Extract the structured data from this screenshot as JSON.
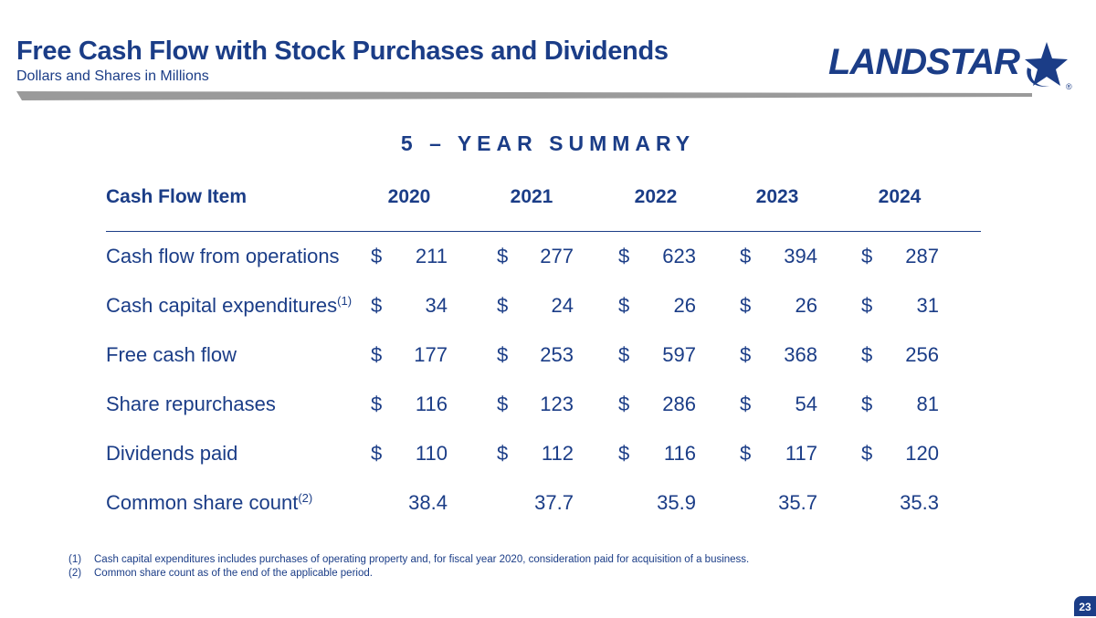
{
  "header": {
    "title": "Free Cash Flow with Stock Purchases and Dividends",
    "subtitle": "Dollars and Shares in Millions"
  },
  "logo": {
    "text": "LANDSTAR",
    "registered": "®",
    "icon": "star-icon",
    "color": "#1b3d87"
  },
  "summary_title": "5 – YEAR SUMMARY",
  "table": {
    "label_header": "Cash Flow Item",
    "years": [
      "2020",
      "2021",
      "2022",
      "2023",
      "2024"
    ],
    "rows": [
      {
        "label": "Cash flow from operations",
        "sup": "",
        "currency": "$",
        "values": [
          "211",
          "277",
          "623",
          "394",
          "287"
        ]
      },
      {
        "label": "Cash capital expenditures",
        "sup": "(1)",
        "currency": "$",
        "values": [
          "34",
          "24",
          "26",
          "26",
          "31"
        ]
      },
      {
        "label": "Free cash flow",
        "sup": "",
        "currency": "$",
        "values": [
          "177",
          "253",
          "597",
          "368",
          "256"
        ]
      },
      {
        "label": "Share repurchases",
        "sup": "",
        "currency": "$",
        "values": [
          "116",
          "123",
          "286",
          "54",
          "81"
        ]
      },
      {
        "label": "Dividends paid",
        "sup": "",
        "currency": "$",
        "values": [
          "110",
          "112",
          "116",
          "117",
          "120"
        ]
      },
      {
        "label": "Common share count",
        "sup": "(2)",
        "currency": "",
        "values": [
          "38.4",
          "37.7",
          "35.9",
          "35.7",
          "35.3"
        ]
      }
    ]
  },
  "footnotes": [
    {
      "num": "(1)",
      "text": "Cash capital expenditures includes purchases of operating property and, for fiscal year 2020, consideration paid for acquisition of a business."
    },
    {
      "num": "(2)",
      "text": "Common share count as of the end of the applicable period."
    }
  ],
  "page_number": "23",
  "colors": {
    "primary": "#1b3d87",
    "rule": "#9a9a9a"
  }
}
